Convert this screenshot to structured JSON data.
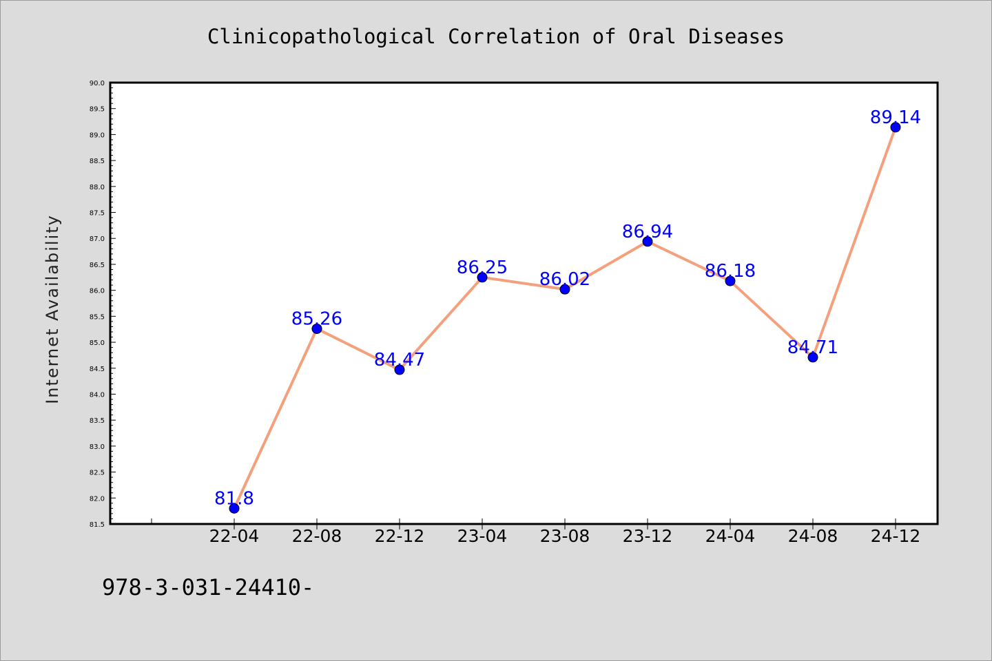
{
  "footnote": "978-3-031-24410-",
  "colors": {
    "background": "#dcdcdc",
    "plot_background": "#ffffff",
    "line": "#f4a07d",
    "marker": "#0000ff",
    "data_label": "#0000ff"
  },
  "chart_data": {
    "type": "line",
    "title": "Clinicopathological Correlation of Oral Diseases",
    "xlabel": "",
    "ylabel": "Internet Availability",
    "categories": [
      "22-04",
      "22-08",
      "22-12",
      "23-04",
      "23-08",
      "23-12",
      "24-04",
      "24-08",
      "24-12"
    ],
    "values": [
      81.8,
      85.26,
      84.47,
      86.25,
      86.02,
      86.94,
      86.18,
      84.71,
      89.14
    ],
    "data_labels": [
      "81.8",
      "85.26",
      "84.47",
      "86.25",
      "86.02",
      "86.94",
      "86.18",
      "84.71",
      "89.14"
    ],
    "ylim": [
      81.5,
      90.0
    ],
    "y_ticks": [
      "81.5",
      "82.0",
      "82.5",
      "83.0",
      "83.5",
      "84.0",
      "84.5",
      "85.0",
      "85.5",
      "86.0",
      "86.5",
      "87.0",
      "87.5",
      "88.0",
      "88.5",
      "89.0",
      "89.5",
      "90.0"
    ],
    "grid": false,
    "legend": "none",
    "marker": "circle"
  }
}
